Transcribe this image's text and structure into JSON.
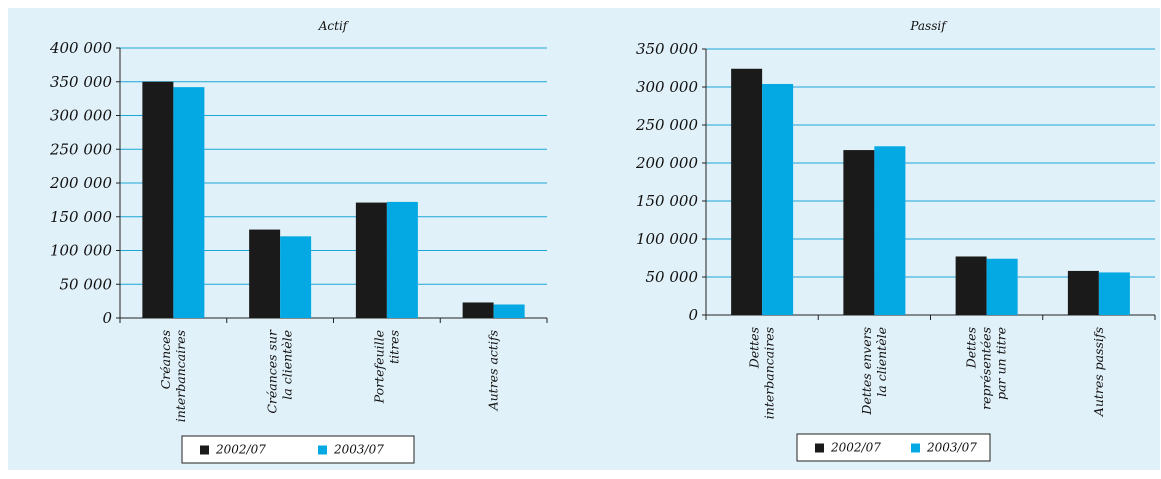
{
  "colors": {
    "background": "#e1f1f9",
    "gridline": "#1aa7d7",
    "series_2002": "#1a1a1a",
    "series_2003": "#04a8e2"
  },
  "chart_data": [
    {
      "type": "bar",
      "title": "Actif",
      "categories": [
        [
          "Créances",
          "interbancaires"
        ],
        [
          "Créances sur",
          "la clientèle"
        ],
        [
          "Portefeuille",
          "titres"
        ],
        [
          "Autres actifs"
        ]
      ],
      "series": [
        {
          "name": "2002/07",
          "values": [
            350000,
            131000,
            171000,
            23000
          ]
        },
        {
          "name": "2003/07",
          "values": [
            342000,
            121000,
            172000,
            20000
          ]
        }
      ],
      "ylim": [
        0,
        400000
      ],
      "yticks": [
        0,
        50000,
        100000,
        150000,
        200000,
        250000,
        300000,
        350000,
        400000
      ],
      "ytick_labels": [
        "0",
        "50 000",
        "100 000",
        "150 000",
        "200 000",
        "250 000",
        "300 000",
        "350 000",
        "400 000"
      ],
      "grid": true,
      "legend": "bottom"
    },
    {
      "type": "bar",
      "title": "Passif",
      "categories": [
        [
          "Dettes",
          "interbancaires"
        ],
        [
          "Dettes envers",
          "la clientèle"
        ],
        [
          "Dettes",
          "représentées",
          "par un titre"
        ],
        [
          "Autres passifs"
        ]
      ],
      "series": [
        {
          "name": "2002/07",
          "values": [
            324000,
            217000,
            77000,
            58000
          ]
        },
        {
          "name": "2003/07",
          "values": [
            304000,
            222000,
            74000,
            56000
          ]
        }
      ],
      "ylim": [
        0,
        350000
      ],
      "yticks": [
        0,
        50000,
        100000,
        150000,
        200000,
        250000,
        300000,
        350000
      ],
      "ytick_labels": [
        "0",
        "50 000",
        "100 000",
        "150 000",
        "200 000",
        "250 000",
        "300 000",
        "350 000"
      ],
      "grid": true,
      "legend": "bottom"
    }
  ]
}
